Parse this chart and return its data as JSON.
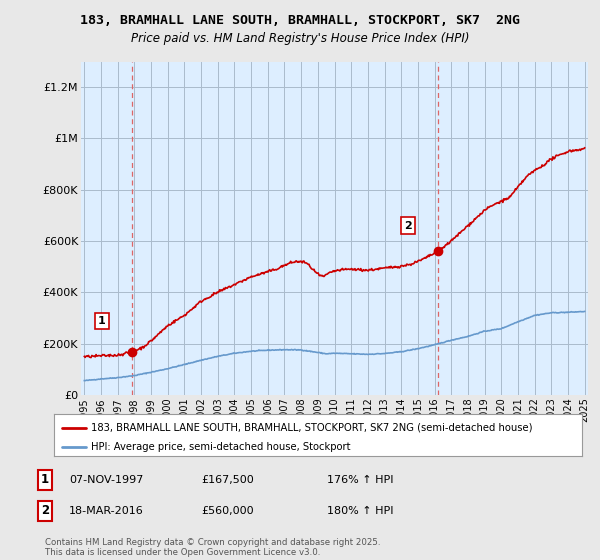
{
  "title": "183, BRAMHALL LANE SOUTH, BRAMHALL, STOCKPORT, SK7  2NG",
  "subtitle": "Price paid vs. HM Land Registry's House Price Index (HPI)",
  "sale1_date": "07-NOV-1997",
  "sale1_price": 167500,
  "sale1_hpi": "176% ↑ HPI",
  "sale1_year": 1997.86,
  "sale2_date": "18-MAR-2016",
  "sale2_price": 560000,
  "sale2_hpi": "180% ↑ HPI",
  "sale2_year": 2016.21,
  "ylabel_ticks": [
    0,
    200000,
    400000,
    600000,
    800000,
    1000000,
    1200000
  ],
  "ylabel_labels": [
    "£0",
    "£200K",
    "£400K",
    "£600K",
    "£800K",
    "£1M",
    "£1.2M"
  ],
  "ylim": [
    0,
    1300000
  ],
  "xlim_start": 1994.8,
  "xlim_end": 2025.2,
  "background_color": "#e8e8e8",
  "plot_bg_color": "#ddeeff",
  "red_line_color": "#cc0000",
  "blue_line_color": "#6699cc",
  "vline_color": "#dd6666",
  "grid_color": "#aabbcc",
  "footer_text": "Contains HM Land Registry data © Crown copyright and database right 2025.\nThis data is licensed under the Open Government Licence v3.0.",
  "xtick_years": [
    1995,
    1996,
    1997,
    1998,
    1999,
    2000,
    2001,
    2002,
    2003,
    2004,
    2005,
    2006,
    2007,
    2008,
    2009,
    2010,
    2011,
    2012,
    2013,
    2014,
    2015,
    2016,
    2017,
    2018,
    2019,
    2020,
    2021,
    2022,
    2023,
    2024,
    2025
  ]
}
